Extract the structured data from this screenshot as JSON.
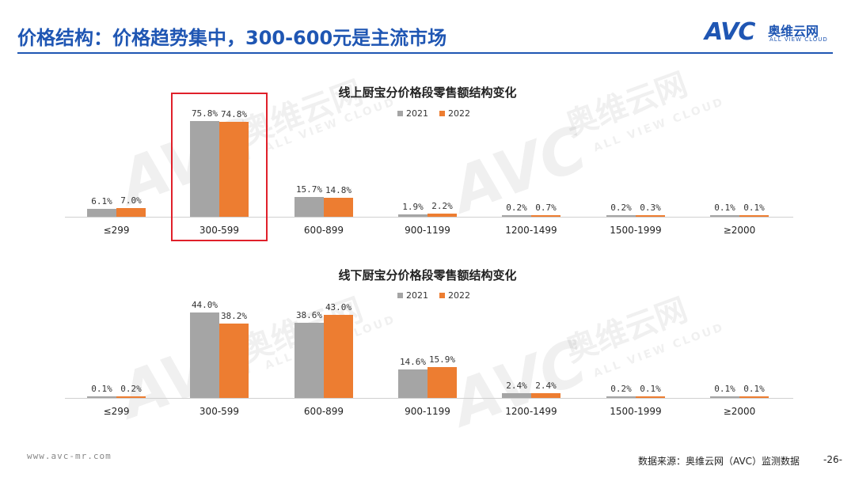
{
  "header": {
    "title": "价格结构：价格趋势集中，300-600元是主流市场"
  },
  "logo": {
    "mark": "AVC",
    "cn": "奥维云网",
    "en": "ALL VIEW CLOUD"
  },
  "watermarks": {
    "mark": "AVC",
    "cn": "奥维云网",
    "en": "ALL VIEW CLOUD"
  },
  "colors": {
    "series_2021": "#a5a5a5",
    "series_2022": "#ed7d31",
    "accent": "#1f56b3",
    "highlight": "#e0202a"
  },
  "chart_data": [
    {
      "type": "bar",
      "title": "线上厨宝分价格段零售额结构变化",
      "categories": [
        "≤299",
        "300-599",
        "600-899",
        "900-1199",
        "1200-1499",
        "1500-1999",
        "≥2000"
      ],
      "series": [
        {
          "name": "2021",
          "values": [
            6.1,
            75.8,
            15.7,
            1.9,
            0.2,
            0.2,
            0.1
          ],
          "labels": [
            "6.1%",
            "75.8%",
            "15.7%",
            "1.9%",
            "0.2%",
            "0.2%",
            "0.1%"
          ]
        },
        {
          "name": "2022",
          "values": [
            7.0,
            74.8,
            14.8,
            2.2,
            0.7,
            0.3,
            0.1
          ],
          "labels": [
            "7.0%",
            "74.8%",
            "14.8%",
            "2.2%",
            "0.7%",
            "0.3%",
            "0.1%"
          ]
        }
      ],
      "highlighted_category": "300-599",
      "legend": "top-center",
      "grid": false
    },
    {
      "type": "bar",
      "title": "线下厨宝分价格段零售额结构变化",
      "categories": [
        "≤299",
        "300-599",
        "600-899",
        "900-1199",
        "1200-1499",
        "1500-1999",
        "≥2000"
      ],
      "series": [
        {
          "name": "2021",
          "values": [
            0.1,
            44.0,
            38.6,
            14.6,
            2.4,
            0.2,
            0.1
          ],
          "labels": [
            "0.1%",
            "44.0%",
            "38.6%",
            "14.6%",
            "2.4%",
            "0.2%",
            "0.1%"
          ]
        },
        {
          "name": "2022",
          "values": [
            0.2,
            38.2,
            43.0,
            15.9,
            2.4,
            0.1,
            0.1
          ],
          "labels": [
            "0.2%",
            "38.2%",
            "43.0%",
            "15.9%",
            "2.4%",
            "0.1%",
            "0.1%"
          ]
        }
      ],
      "legend": "top-center",
      "grid": false
    }
  ],
  "footer": {
    "url": "www.avc-mr.com",
    "source": "数据来源：奥维云网（AVC）监测数据",
    "page": "-26-"
  }
}
